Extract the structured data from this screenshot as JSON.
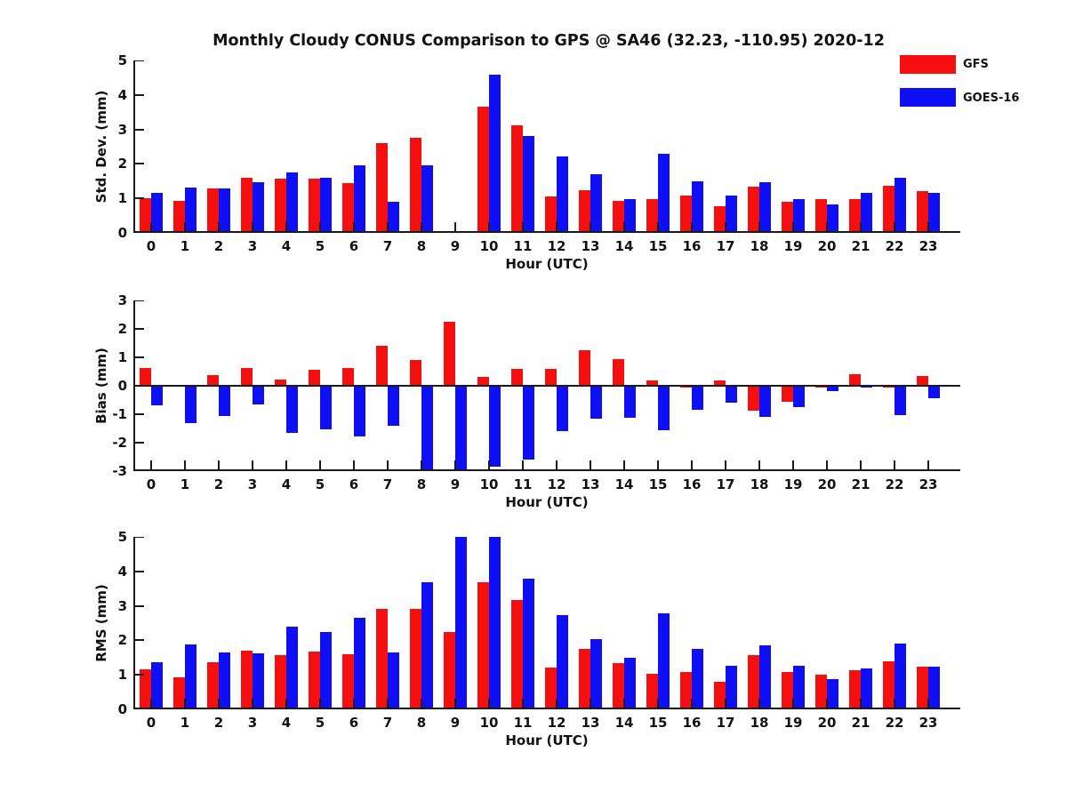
{
  "title": "Monthly Cloudy CONUS Comparison to GPS @ SA46 (32.23, -110.95) 2020-12",
  "legend": {
    "position": "top-right",
    "items": [
      {
        "label": "GFS",
        "color": "#f50f0f"
      },
      {
        "label": "GOES-16",
        "color": "#0f0ff5"
      }
    ]
  },
  "chart_data": [
    {
      "type": "bar",
      "ylabel": "Std. Dev. (mm)",
      "xlabel": "Hour (UTC)",
      "ylim": [
        0,
        5
      ],
      "yticks": [
        0,
        1,
        2,
        3,
        4,
        5
      ],
      "grid": false,
      "categories": [
        "0",
        "1",
        "2",
        "3",
        "4",
        "5",
        "6",
        "7",
        "8",
        "9",
        "10",
        "11",
        "12",
        "13",
        "14",
        "15",
        "16",
        "17",
        "18",
        "19",
        "20",
        "21",
        "22",
        "23"
      ],
      "series": [
        {
          "name": "GFS",
          "color": "#f50f0f",
          "values": [
            1.0,
            0.93,
            1.3,
            1.6,
            1.57,
            1.57,
            1.45,
            2.6,
            2.77,
            0.0,
            3.67,
            3.13,
            1.05,
            1.24,
            0.94,
            0.97,
            1.07,
            0.77,
            1.34,
            0.9,
            0.98,
            0.98,
            1.37,
            1.2
          ]
        },
        {
          "name": "GOES-16",
          "color": "#0f0ff5",
          "values": [
            1.15,
            1.32,
            1.3,
            1.47,
            1.74,
            1.61,
            1.96,
            0.9,
            1.97,
            0.0,
            4.58,
            2.81,
            2.21,
            1.69,
            0.97,
            2.3,
            1.5,
            1.09,
            1.47,
            0.97,
            0.82,
            1.15,
            1.6,
            1.17
          ]
        }
      ],
      "notes": "both series zero at hour 9; inward axis tick visible there"
    },
    {
      "type": "bar",
      "ylabel": "Bias (mm)",
      "xlabel": "Hour (UTC)",
      "ylim": [
        -3,
        3
      ],
      "yticks": [
        -3,
        -2,
        -1,
        0,
        1,
        2,
        3
      ],
      "grid": false,
      "categories": [
        "0",
        "1",
        "2",
        "3",
        "4",
        "5",
        "6",
        "7",
        "8",
        "9",
        "10",
        "11",
        "12",
        "13",
        "14",
        "15",
        "16",
        "17",
        "18",
        "19",
        "20",
        "21",
        "22",
        "23"
      ],
      "series": [
        {
          "name": "GFS",
          "color": "#f50f0f",
          "values": [
            0.64,
            0.03,
            0.37,
            0.64,
            0.22,
            0.55,
            0.64,
            1.4,
            0.9,
            2.26,
            0.3,
            0.58,
            0.6,
            1.25,
            0.93,
            0.18,
            -0.05,
            0.2,
            -0.87,
            -0.56,
            -0.07,
            0.41,
            -0.06,
            0.34
          ]
        },
        {
          "name": "GOES-16",
          "color": "#0f0ff5",
          "values": [
            -0.68,
            -1.3,
            -1.06,
            -0.67,
            -1.65,
            -1.54,
            -1.78,
            -1.4,
            -3.0,
            -3.0,
            -2.85,
            -2.58,
            -1.58,
            -1.16,
            -1.11,
            -1.55,
            -0.85,
            -0.6,
            -1.08,
            -0.75,
            -0.18,
            -0.07,
            -1.02,
            -0.43
          ]
        }
      ],
      "notes": "GOES-16 bars at hours 8 and 9 are clipped at -3"
    },
    {
      "type": "bar",
      "ylabel": "RMS (mm)",
      "xlabel": "Hour (UTC)",
      "ylim": [
        0,
        5
      ],
      "yticks": [
        0,
        1,
        2,
        3,
        4,
        5
      ],
      "grid": false,
      "categories": [
        "0",
        "1",
        "2",
        "3",
        "4",
        "5",
        "6",
        "7",
        "8",
        "9",
        "10",
        "11",
        "12",
        "13",
        "14",
        "15",
        "16",
        "17",
        "18",
        "19",
        "20",
        "21",
        "22",
        "23"
      ],
      "series": [
        {
          "name": "GFS",
          "color": "#f50f0f",
          "values": [
            1.16,
            0.92,
            1.36,
            1.7,
            1.56,
            1.68,
            1.61,
            2.92,
            2.9,
            2.23,
            3.69,
            3.16,
            1.2,
            1.76,
            1.35,
            1.03,
            1.07,
            0.8,
            1.57,
            1.07,
            1.0,
            1.14,
            1.4,
            1.25
          ]
        },
        {
          "name": "GOES-16",
          "color": "#0f0ff5",
          "values": [
            1.37,
            1.87,
            1.66,
            1.63,
            2.39,
            2.23,
            2.65,
            1.66,
            3.69,
            5.0,
            5.0,
            3.8,
            2.72,
            2.04,
            1.49,
            2.78,
            1.76,
            1.26,
            1.86,
            1.26,
            0.88,
            1.18,
            1.92,
            1.25
          ]
        }
      ],
      "notes": "GOES-16 bars at hours 9 and 10 are clipped at 5"
    }
  ]
}
